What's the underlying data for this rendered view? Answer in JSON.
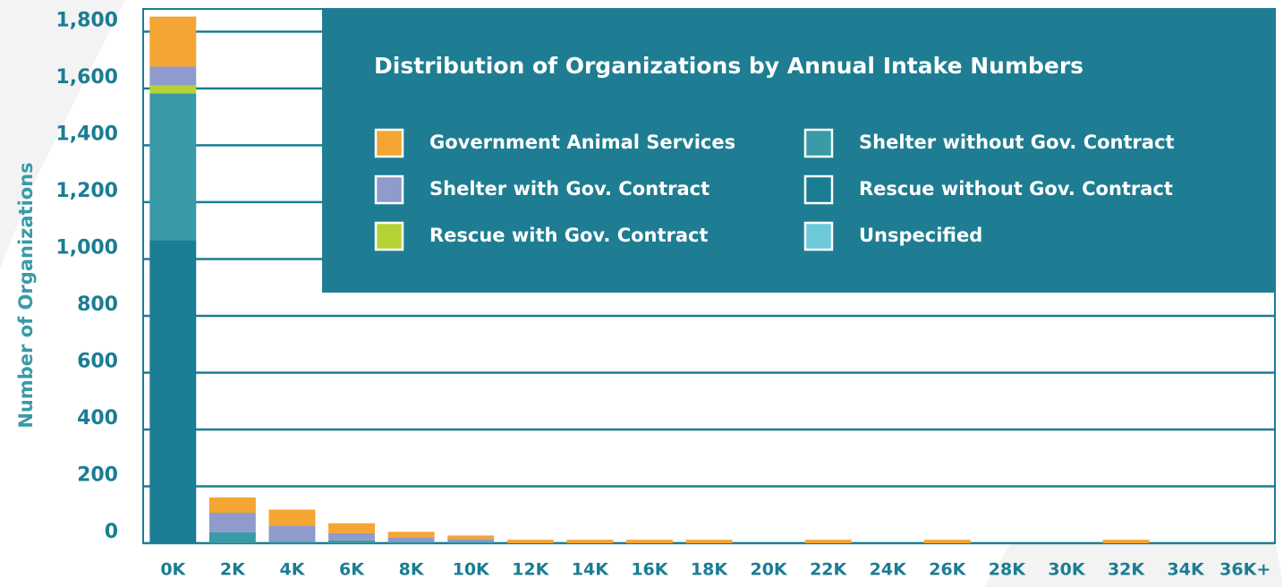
{
  "chart_data": {
    "type": "stacked_bar",
    "title": "Distribution of Organizations by Annual Intake Numbers",
    "y_label": "Number of Organizations",
    "categories": [
      "0K",
      "2K",
      "4K",
      "6K",
      "8K",
      "10K",
      "12K",
      "14K",
      "16K",
      "18K",
      "20K",
      "22K",
      "24K",
      "26K",
      "28K",
      "30K",
      "32K",
      "34K",
      "36K+"
    ],
    "series": [
      {
        "name": "Government Animal Services",
        "color": "#f4a533",
        "values": [
          176,
          54,
          57,
          35,
          20,
          12,
          12,
          12,
          12,
          12,
          0,
          12,
          0,
          12,
          0,
          0,
          12,
          0,
          0
        ]
      },
      {
        "name": "Shelter without Gov. Contract",
        "color": "#3a9aa8",
        "values": [
          516,
          38,
          6,
          10,
          5,
          5,
          0,
          0,
          0,
          0,
          0,
          0,
          0,
          0,
          0,
          0,
          0,
          0,
          0
        ]
      },
      {
        "name": "Shelter with Gov. Contract",
        "color": "#8e9bcc",
        "values": [
          66,
          69,
          55,
          25,
          15,
          10,
          0,
          0,
          0,
          0,
          0,
          0,
          0,
          0,
          0,
          0,
          0,
          0,
          0
        ]
      },
      {
        "name": "Rescue without Gov. Contract",
        "color": "#1b7d93",
        "values": [
          1067,
          0,
          0,
          0,
          0,
          0,
          0,
          0,
          0,
          0,
          0,
          0,
          0,
          0,
          0,
          0,
          0,
          0,
          0
        ]
      },
      {
        "name": "Rescue with Gov. Contract",
        "color": "#b5d334",
        "values": [
          28,
          0,
          0,
          0,
          0,
          0,
          0,
          0,
          0,
          0,
          0,
          0,
          0,
          0,
          0,
          0,
          0,
          0,
          0
        ]
      },
      {
        "name": "Unspecified",
        "color": "#6cc9d9",
        "values": [
          0,
          0,
          0,
          0,
          0,
          0,
          0,
          0,
          0,
          0,
          0,
          0,
          0,
          0,
          0,
          0,
          0,
          0,
          0
        ]
      }
    ],
    "ylim": [
      0,
      1880
    ],
    "yticks": [
      0,
      200,
      400,
      600,
      800,
      {
        "value": 1000,
        "label": "1,000"
      },
      {
        "value": 1200,
        "label": "1,200"
      },
      {
        "value": 1400,
        "label": "1,400"
      },
      {
        "value": 1600,
        "label": "1,600"
      },
      {
        "value": 1800,
        "label": "1,800"
      }
    ],
    "grid": true
  }
}
